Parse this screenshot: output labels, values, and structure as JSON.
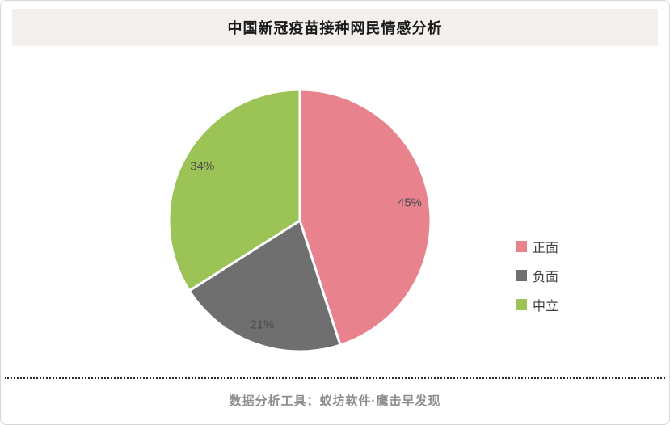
{
  "header": {
    "title": "中国新冠疫苗接种网民情感分析"
  },
  "footer": {
    "credit": "数据分析工具：蚁坊软件·鹰击早发现"
  },
  "chart_data": {
    "type": "pie",
    "title": "中国新冠疫苗接种网民情感分析",
    "categories": [
      "正面",
      "负面",
      "中立"
    ],
    "keys": [
      "positive",
      "negative",
      "neutral"
    ],
    "values": [
      45,
      21,
      34
    ],
    "unit": "%",
    "colors": [
      "#e8838e",
      "#6f6f6f",
      "#9cc356"
    ],
    "slice_labels": [
      "45%",
      "21%",
      "34%"
    ],
    "label_color": "#4d4d4d",
    "legend_position": "right",
    "start_angle_deg": 0,
    "direction": "clockwise"
  }
}
